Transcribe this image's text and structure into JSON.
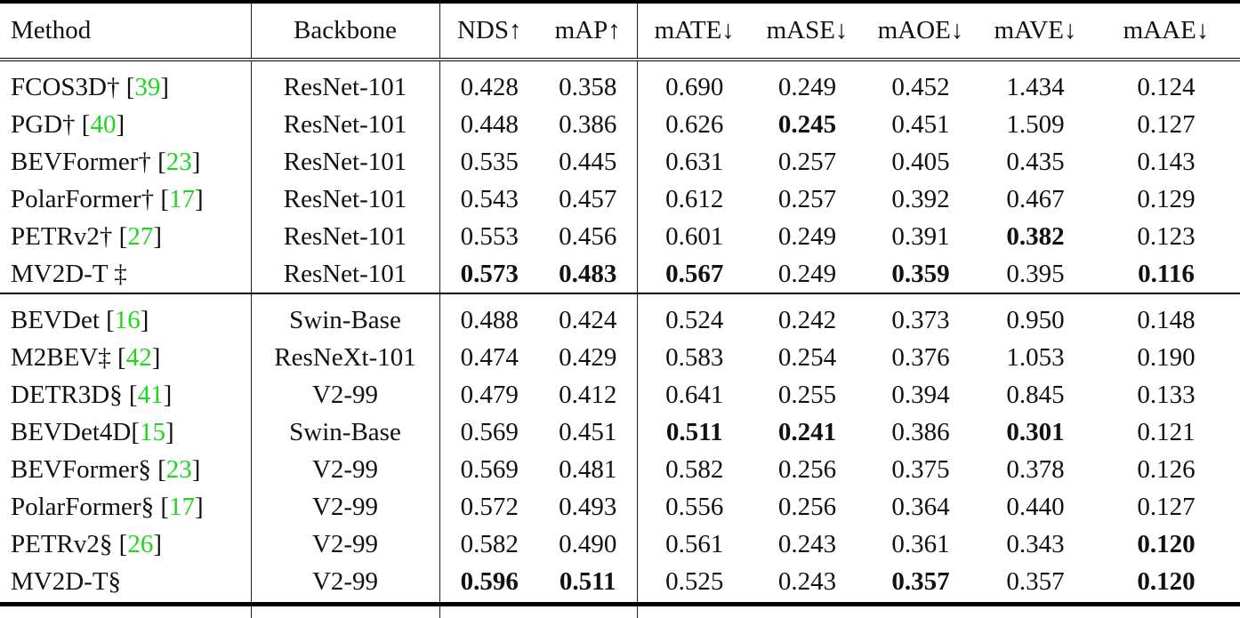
{
  "colors": {
    "citation": "#1ed61e",
    "rule": "#000000"
  },
  "header": [
    "Method",
    "Backbone",
    "NDS↑",
    "mAP↑",
    "mATE↓",
    "mASE↓",
    "mAOE↓",
    "mAVE↓",
    "mAAE↓"
  ],
  "sections": [
    [
      {
        "method": "FCOS3D†",
        "cite": "39",
        "backbone": "ResNet-101",
        "values": [
          "0.428",
          "0.358",
          "0.690",
          "0.249",
          "0.452",
          "1.434",
          "0.124"
        ],
        "bold": []
      },
      {
        "method": "PGD†",
        "cite": "40",
        "backbone": "ResNet-101",
        "values": [
          "0.448",
          "0.386",
          "0.626",
          "0.245",
          "0.451",
          "1.509",
          "0.127"
        ],
        "bold": [
          3
        ]
      },
      {
        "method": "BEVFormer†",
        "cite": "23",
        "backbone": "ResNet-101",
        "values": [
          "0.535",
          "0.445",
          "0.631",
          "0.257",
          "0.405",
          "0.435",
          "0.143"
        ],
        "bold": []
      },
      {
        "method": "PolarFormer†",
        "cite": "17",
        "backbone": "ResNet-101",
        "values": [
          "0.543",
          "0.457",
          "0.612",
          "0.257",
          "0.392",
          "0.467",
          "0.129"
        ],
        "bold": []
      },
      {
        "method": "PETRv2†",
        "cite": "27",
        "backbone": "ResNet-101",
        "values": [
          "0.553",
          "0.456",
          "0.601",
          "0.249",
          "0.391",
          "0.382",
          "0.123"
        ],
        "bold": [
          5
        ]
      },
      {
        "method": "MV2D-T ‡",
        "cite": "",
        "backbone": "ResNet-101",
        "values": [
          "0.573",
          "0.483",
          "0.567",
          "0.249",
          "0.359",
          "0.395",
          "0.116"
        ],
        "bold": [
          0,
          1,
          2,
          4,
          6
        ]
      }
    ],
    [
      {
        "method": "BEVDet",
        "cite": "16",
        "backbone": "Swin-Base",
        "values": [
          "0.488",
          "0.424",
          "0.524",
          "0.242",
          "0.373",
          "0.950",
          "0.148"
        ],
        "bold": []
      },
      {
        "method": "M2BEV‡",
        "cite": "42",
        "backbone": "ResNeXt-101",
        "values": [
          "0.474",
          "0.429",
          "0.583",
          "0.254",
          "0.376",
          "1.053",
          "0.190"
        ],
        "bold": []
      },
      {
        "method": "DETR3D§",
        "cite": "41",
        "backbone": "V2-99",
        "values": [
          "0.479",
          "0.412",
          "0.641",
          "0.255",
          "0.394",
          "0.845",
          "0.133"
        ],
        "bold": []
      },
      {
        "method": "BEVDet4D",
        "cite": "15",
        "backbone": "Swin-Base",
        "values": [
          "0.569",
          "0.451",
          "0.511",
          "0.241",
          "0.386",
          "0.301",
          "0.121"
        ],
        "bold": [
          2,
          3,
          5
        ],
        "nospace": true
      },
      {
        "method": "BEVFormer§",
        "cite": "23",
        "backbone": "V2-99",
        "values": [
          "0.569",
          "0.481",
          "0.582",
          "0.256",
          "0.375",
          "0.378",
          "0.126"
        ],
        "bold": []
      },
      {
        "method": "PolarFormer§",
        "cite": "17",
        "backbone": "V2-99",
        "values": [
          "0.572",
          "0.493",
          "0.556",
          "0.256",
          "0.364",
          "0.440",
          "0.127"
        ],
        "bold": []
      },
      {
        "method": "PETRv2§",
        "cite": "26",
        "backbone": "V2-99",
        "values": [
          "0.582",
          "0.490",
          "0.561",
          "0.243",
          "0.361",
          "0.343",
          "0.120"
        ],
        "bold": [
          6
        ]
      },
      {
        "method": "MV2D-T§",
        "cite": "",
        "backbone": "V2-99",
        "values": [
          "0.596",
          "0.511",
          "0.525",
          "0.243",
          "0.357",
          "0.357",
          "0.120"
        ],
        "bold": [
          0,
          1,
          4,
          6
        ]
      }
    ]
  ]
}
